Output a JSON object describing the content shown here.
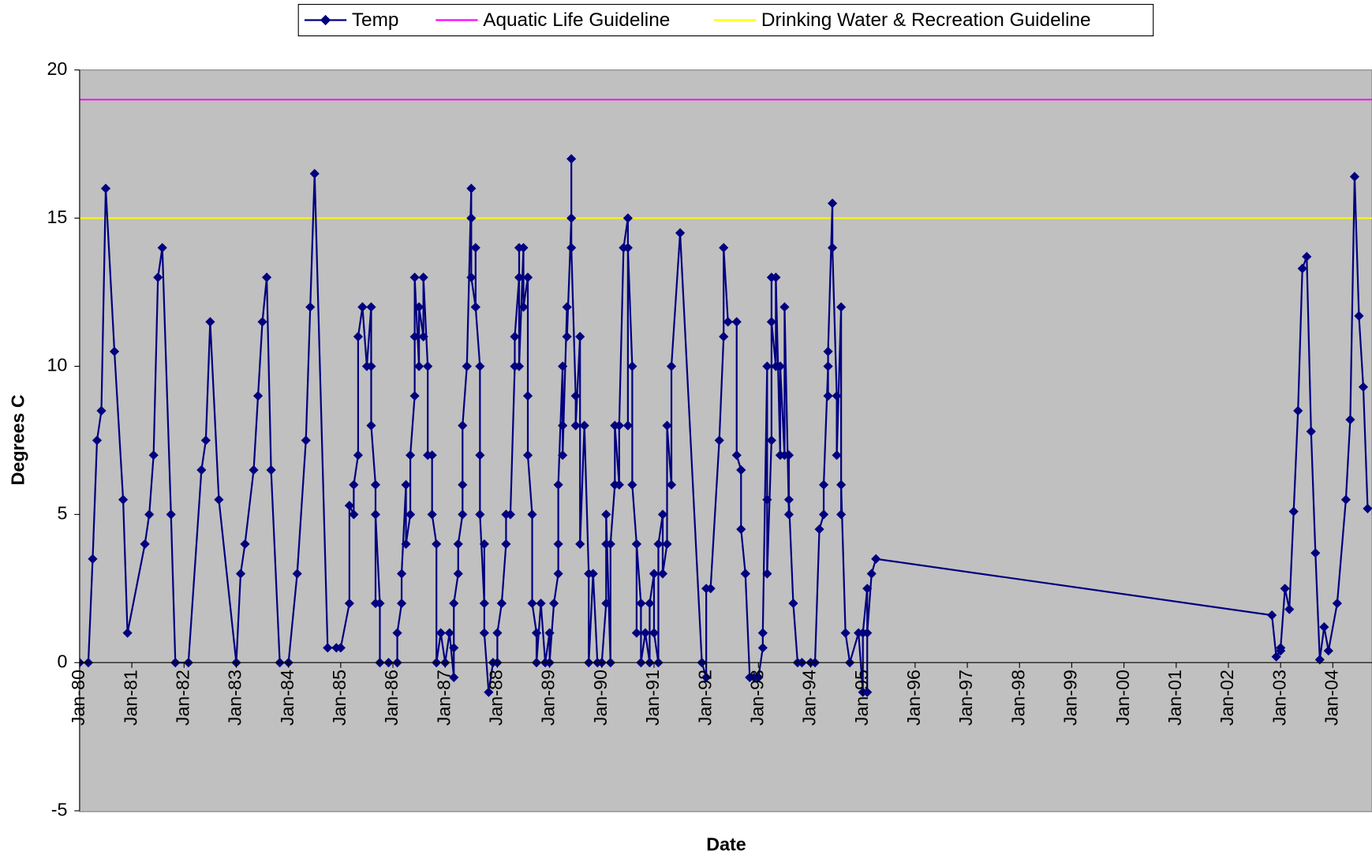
{
  "chart_data": {
    "type": "line",
    "x_label": "Date",
    "y_label": "Degrees C",
    "xlim": [
      "1980-01",
      "2004-10"
    ],
    "ylim": [
      -5,
      20
    ],
    "yticks": [
      -5,
      0,
      5,
      10,
      15,
      20
    ],
    "xticks": [
      {
        "value": "1980-01",
        "label": "Jan-80"
      },
      {
        "value": "1981-01",
        "label": "Jan-81"
      },
      {
        "value": "1982-01",
        "label": "Jan-82"
      },
      {
        "value": "1983-01",
        "label": "Jan-83"
      },
      {
        "value": "1984-01",
        "label": "Jan-84"
      },
      {
        "value": "1985-01",
        "label": "Jan-85"
      },
      {
        "value": "1986-01",
        "label": "Jan-86"
      },
      {
        "value": "1987-01",
        "label": "Jan-87"
      },
      {
        "value": "1988-01",
        "label": "Jan-88"
      },
      {
        "value": "1989-01",
        "label": "Jan-89"
      },
      {
        "value": "1990-01",
        "label": "Jan-90"
      },
      {
        "value": "1991-01",
        "label": "Jan-91"
      },
      {
        "value": "1992-01",
        "label": "Jan-92"
      },
      {
        "value": "1993-01",
        "label": "Jan-93"
      },
      {
        "value": "1994-01",
        "label": "Jan-94"
      },
      {
        "value": "1995-01",
        "label": "Jan-95"
      },
      {
        "value": "1996-01",
        "label": "Jan-96"
      },
      {
        "value": "1997-01",
        "label": "Jan-97"
      },
      {
        "value": "1998-01",
        "label": "Jan-98"
      },
      {
        "value": "1999-01",
        "label": "Jan-99"
      },
      {
        "value": "2000-01",
        "label": "Jan-00"
      },
      {
        "value": "2001-01",
        "label": "Jan-01"
      },
      {
        "value": "2002-01",
        "label": "Jan-02"
      },
      {
        "value": "2003-01",
        "label": "Jan-03"
      },
      {
        "value": "2004-01",
        "label": "Jan-04"
      }
    ],
    "plot_background": "#c0c0c0",
    "legend_position": "top",
    "series": [
      {
        "name": "Temp",
        "color": "#000080",
        "marker": "diamond",
        "x": [
          "1980-01",
          "1980-03",
          "1980-04",
          "1980-05",
          "1980-06",
          "1980-07",
          "1980-09",
          "1980-11",
          "1980-12",
          "1981-04",
          "1981-05",
          "1981-06",
          "1981-07",
          "1981-08",
          "1981-10",
          "1981-11",
          "1982-02",
          "1982-05",
          "1982-06",
          "1982-07",
          "1982-09",
          "1983-01",
          "1983-02",
          "1983-03",
          "1983-05",
          "1983-06",
          "1983-07",
          "1983-08",
          "1983-09",
          "1983-11",
          "1984-01",
          "1984-03",
          "1984-05",
          "1984-06",
          "1984-07",
          "1984-10",
          "1984-12",
          "1985-01",
          "1985-03",
          "1985-03",
          "1985-04",
          "1985-04",
          "1985-05",
          "1985-05",
          "1985-06",
          "1985-06",
          "1985-07",
          "1985-08",
          "1985-08",
          "1985-08",
          "1985-09",
          "1985-09",
          "1985-09",
          "1985-10",
          "1985-10",
          "1985-12",
          "1986-02",
          "1986-02",
          "1986-03",
          "1986-03",
          "1986-04",
          "1986-04",
          "1986-05",
          "1986-05",
          "1986-06",
          "1986-06",
          "1986-06",
          "1986-07",
          "1986-07",
          "1986-08",
          "1986-08",
          "1986-09",
          "1986-09",
          "1986-10",
          "1986-10",
          "1986-11",
          "1986-11",
          "1986-12",
          "1987-01",
          "1987-02",
          "1987-03",
          "1987-03",
          "1987-03",
          "1987-04",
          "1987-04",
          "1987-05",
          "1987-05",
          "1987-05",
          "1987-06",
          "1987-06",
          "1987-07",
          "1987-07",
          "1987-07",
          "1987-08",
          "1987-08",
          "1987-08",
          "1987-09",
          "1987-09",
          "1987-09",
          "1987-10",
          "1987-10",
          "1987-10",
          "1987-11",
          "1987-12",
          "1988-01",
          "1988-01",
          "1988-02",
          "1988-02",
          "1988-03",
          "1988-03",
          "1988-04",
          "1988-05",
          "1988-05",
          "1988-06",
          "1988-06",
          "1988-06",
          "1988-07",
          "1988-07",
          "1988-08",
          "1988-08",
          "1988-08",
          "1988-09",
          "1988-09",
          "1988-10",
          "1988-10",
          "1988-11",
          "1988-12",
          "1989-01",
          "1989-01",
          "1989-02",
          "1989-03",
          "1989-03",
          "1989-03",
          "1989-04",
          "1989-04",
          "1989-04",
          "1989-05",
          "1989-05",
          "1989-06",
          "1989-06",
          "1989-06",
          "1989-07",
          "1989-07",
          "1989-08",
          "1989-08",
          "1989-09",
          "1989-10",
          "1989-10",
          "1989-11",
          "1989-12",
          "1990-01",
          "1990-02",
          "1990-02",
          "1990-02",
          "1990-03",
          "1990-03",
          "1990-04",
          "1990-04",
          "1990-05",
          "1990-05",
          "1990-06",
          "1990-07",
          "1990-07",
          "1990-07",
          "1990-08",
          "1990-08",
          "1990-09",
          "1990-09",
          "1990-09",
          "1990-10",
          "1990-10",
          "1990-11",
          "1990-12",
          "1990-12",
          "1991-01",
          "1991-01",
          "1991-02",
          "1991-02",
          "1991-03",
          "1991-03",
          "1991-04",
          "1991-04",
          "1991-05",
          "1991-05",
          "1991-07",
          "1991-12",
          "1992-01",
          "1992-01",
          "1992-02",
          "1992-04",
          "1992-05",
          "1992-05",
          "1992-06",
          "1992-08",
          "1992-08",
          "1992-09",
          "1992-09",
          "1992-10",
          "1992-10",
          "1992-11",
          "1992-12",
          "1993-01",
          "1993-02",
          "1993-02",
          "1993-03",
          "1993-03",
          "1993-03",
          "1993-04",
          "1993-04",
          "1993-04",
          "1993-05",
          "1993-05",
          "1993-06",
          "1993-06",
          "1993-07",
          "1993-07",
          "1993-08",
          "1993-08",
          "1993-08",
          "1993-09",
          "1993-10",
          "1993-11",
          "1994-01",
          "1994-02",
          "1994-03",
          "1994-04",
          "1994-04",
          "1994-05",
          "1994-05",
          "1994-05",
          "1994-06",
          "1994-06",
          "1994-07",
          "1994-07",
          "1994-08",
          "1994-08",
          "1994-08",
          "1994-09",
          "1994-10",
          "1994-12",
          "1995-01",
          "1995-01",
          "1995-02",
          "1995-02",
          "1995-02",
          "1995-03",
          "1995-04",
          "2002-11",
          "2002-12",
          "2003-01",
          "2003-01",
          "2003-02",
          "2003-03",
          "2003-04",
          "2003-05",
          "2003-06",
          "2003-07",
          "2003-08",
          "2003-09",
          "2003-10",
          "2003-11",
          "2003-12",
          "2004-02",
          "2004-04",
          "2004-05",
          "2004-06",
          "2004-07",
          "2004-08",
          "2004-09"
        ],
        "values": [
          0,
          0,
          3.5,
          7.5,
          8.5,
          16,
          10.5,
          5.5,
          1,
          4,
          5,
          7,
          13,
          14,
          5,
          0,
          0,
          6.5,
          7.5,
          11.5,
          5.5,
          0,
          3,
          4,
          6.5,
          9,
          11.5,
          13,
          6.5,
          0,
          0,
          3,
          7.5,
          12,
          16.5,
          0.5,
          0.5,
          0.5,
          2,
          5.3,
          5,
          6,
          7,
          11,
          12,
          12,
          10,
          12,
          10,
          8,
          6,
          2,
          5,
          2,
          0,
          0,
          0,
          1,
          2,
          3,
          6,
          4,
          5,
          7,
          9,
          11,
          13,
          10,
          12,
          11,
          13,
          10,
          7,
          7,
          5,
          4,
          0,
          1,
          0,
          1,
          -0.5,
          0.5,
          2,
          3,
          4,
          5,
          6,
          8,
          10,
          10,
          16,
          15,
          13,
          12,
          14,
          12,
          10,
          7,
          5,
          2,
          4,
          1,
          -1,
          0,
          0,
          1,
          2,
          2,
          4,
          5,
          5,
          10,
          11,
          13,
          14,
          10,
          14,
          12,
          13,
          9,
          7,
          5,
          2,
          1,
          0,
          2,
          0,
          1,
          0,
          2,
          3,
          4,
          6,
          10,
          8,
          7,
          12,
          11,
          15,
          17,
          14,
          9,
          8,
          11,
          4,
          8,
          3,
          0,
          3,
          0,
          0,
          2,
          4,
          5,
          0,
          4,
          6,
          8,
          6,
          8,
          14,
          15,
          8,
          14,
          10,
          6,
          4,
          1,
          4,
          2,
          0,
          1,
          0,
          2,
          3,
          1,
          0,
          4,
          5,
          3,
          4,
          8,
          6,
          10,
          14.5,
          0,
          -0.5,
          2.5,
          2.5,
          7.5,
          11,
          14,
          11.5,
          11.5,
          7,
          6.5,
          4.5,
          3,
          3,
          -0.5,
          -0.5,
          -0.5,
          0.5,
          1,
          10,
          5.5,
          3,
          7.5,
          13,
          11.5,
          10,
          13,
          7,
          10,
          7,
          12,
          5,
          7,
          5.5,
          2,
          0,
          0,
          0,
          0,
          4.5,
          5,
          6,
          10,
          9,
          10.5,
          15.5,
          14,
          9,
          7,
          12,
          5,
          6,
          1,
          0,
          1,
          -1,
          1,
          2.5,
          -1,
          1,
          3,
          3.5,
          1.6,
          0.2,
          0.4,
          0.5,
          2.5,
          1.8,
          5.1,
          8.5,
          13.3,
          13.7,
          7.8,
          3.7,
          0.1,
          1.2,
          0.4,
          2,
          5.5,
          8.2,
          16.4,
          11.7,
          9.3,
          5.2
        ]
      },
      {
        "name": "Aquatic Life Guideline",
        "color": "#ff00ff",
        "x": [
          "1980-01",
          "2004-10"
        ],
        "values": [
          19,
          19
        ]
      },
      {
        "name": "Drinking Water & Recreation Guideline",
        "color": "#ffff00",
        "x": [
          "1980-01",
          "2004-10"
        ],
        "values": [
          15,
          15
        ]
      }
    ]
  }
}
